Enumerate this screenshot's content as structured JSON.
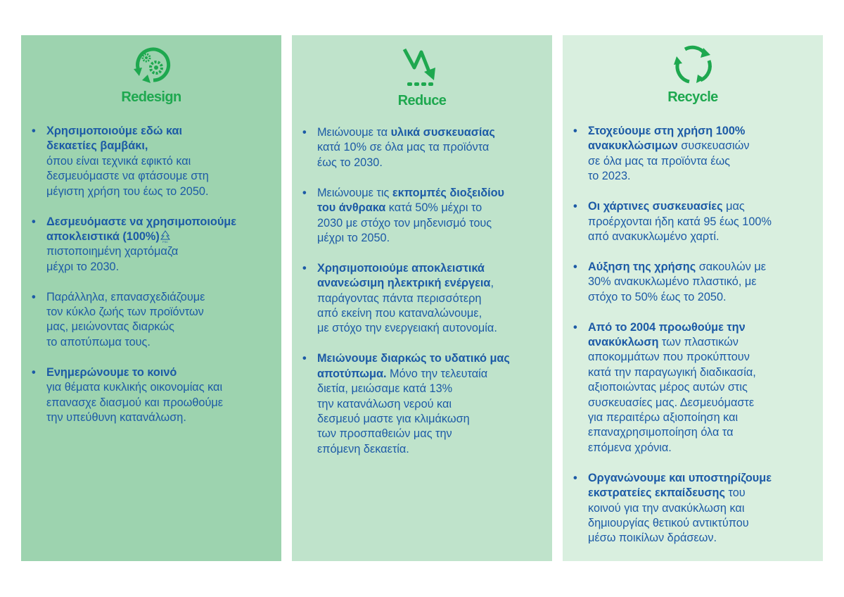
{
  "colors": {
    "text": "#1c5aa6",
    "accent_green": "#1ea84f",
    "panel_backgrounds": [
      "#9dd3af",
      "#bfe3cb",
      "#d9efdf"
    ]
  },
  "panels": [
    {
      "title": "Redesign",
      "icon": "gears-cycle-icon",
      "bullets": [
        [
          [
            {
              "t": "Χρησιμοποιούμε εδώ και",
              "b": true
            }
          ],
          [
            {
              "t": "δεκαετίες βαμβάκι,",
              "b": true
            }
          ],
          [
            {
              "t": "όπου είναι τεχνικά εφικτό και",
              "b": false
            }
          ],
          [
            {
              "t": "δεσμευόμαστε να φτάσουμε στη",
              "b": false
            }
          ],
          [
            {
              "t": "μέγιστη χρήση του έως το 2050.",
              "b": false
            }
          ]
        ],
        [
          [
            {
              "t": "Δεσμευόμαστε να χρησιμοποιούμε",
              "b": true
            }
          ],
          [
            {
              "t": "αποκλειστικά (100%)",
              "b": true
            },
            {
              "t": "FSC",
              "logo": true
            }
          ],
          [
            {
              "t": "πιστοποιημένη χαρτόμαζα",
              "b": false
            }
          ],
          [
            {
              "t": "μέχρι το 2030.",
              "b": false
            }
          ]
        ],
        [
          [
            {
              "t": "Παράλληλα, επανασχεδιάζουμε",
              "b": false
            }
          ],
          [
            {
              "t": "τον κύκλο ζωής των προϊόντων",
              "b": false
            }
          ],
          [
            {
              "t": "μας, μειώνοντας διαρκώς",
              "b": false
            }
          ],
          [
            {
              "t": "το αποτύπωμα τους.",
              "b": false
            }
          ]
        ],
        [
          [
            {
              "t": "Ενημερώνουμε το κοινό",
              "b": true
            }
          ],
          [
            {
              "t": "για θέματα κυκλικής οικονομίας και",
              "b": false
            }
          ],
          [
            {
              "t": "επανασχε διασμού και προωθούμε",
              "b": false
            }
          ],
          [
            {
              "t": "την υπεύθυνη κατανάλωση.",
              "b": false
            }
          ]
        ]
      ]
    },
    {
      "title": "Reduce",
      "icon": "downward-trend-arrow-icon",
      "bullets": [
        [
          [
            {
              "t": "Μειώνουμε τα ",
              "b": false
            },
            {
              "t": "υλικά συσκευασίας",
              "b": true
            }
          ],
          [
            {
              "t": "κατά 10% σε όλα μας τα προϊόντα",
              "b": false
            }
          ],
          [
            {
              "t": "έως το 2030.",
              "b": false
            }
          ]
        ],
        [
          [
            {
              "t": "Μειώνουμε τις ",
              "b": false
            },
            {
              "t": "εκπομπές διοξειδίου",
              "b": true
            }
          ],
          [
            {
              "t": "του άνθρακα",
              "b": true
            },
            {
              "t": " κατά 50% μέχρι το",
              "b": false
            }
          ],
          [
            {
              "t": "2030 με στόχο τον μηδενισμό τους",
              "b": false
            }
          ],
          [
            {
              "t": "μέχρι το 2050.",
              "b": false
            }
          ]
        ],
        [
          [
            {
              "t": "Χρησιμοποιούμε αποκλειστικά",
              "b": true
            }
          ],
          [
            {
              "t": "ανανεώσιμη ηλεκτρική ενέργεια",
              "b": true
            },
            {
              "t": ",",
              "b": false
            }
          ],
          [
            {
              "t": "παράγοντας πάντα περισσότερη",
              "b": false
            }
          ],
          [
            {
              "t": "από εκείνη που καταναλώνουμε,",
              "b": false
            }
          ],
          [
            {
              "t": "με στόχο την ενεργειακή αυτονομία.",
              "b": false
            }
          ]
        ],
        [
          [
            {
              "t": "Μειώνουμε διαρκώς το υδατικό μας",
              "b": true
            }
          ],
          [
            {
              "t": "αποτύπωμα.",
              "b": true
            },
            {
              "t": " Μόνο την τελευταία",
              "b": false
            }
          ],
          [
            {
              "t": "διετία, μειώσαμε κατά 13%",
              "b": false
            }
          ],
          [
            {
              "t": "την κατανάλωση νερού και",
              "b": false
            }
          ],
          [
            {
              "t": "δεσμευό μαστε για κλιμάκωση",
              "b": false
            }
          ],
          [
            {
              "t": "των προσπαθειών μας την",
              "b": false
            }
          ],
          [
            {
              "t": "επόμενη δεκαετία.",
              "b": false
            }
          ]
        ]
      ]
    },
    {
      "title": "Recycle",
      "icon": "recycle-arrows-icon",
      "bullets": [
        [
          [
            {
              "t": "Στοχεύουμε στη χρήση 100%",
              "b": true
            }
          ],
          [
            {
              "t": "ανακυκλώσιμων",
              "b": true
            },
            {
              "t": " συσκευασιών",
              "b": false
            }
          ],
          [
            {
              "t": "σε όλα μας τα προϊόντα έως",
              "b": false
            }
          ],
          [
            {
              "t": "το 2023.",
              "b": false
            }
          ]
        ],
        [
          [
            {
              "t": "Οι χάρτινες συσκευασίες",
              "b": true
            },
            {
              "t": " μας",
              "b": false
            }
          ],
          [
            {
              "t": "προέρχονται ήδη κατά 95 έως 100%",
              "b": false
            }
          ],
          [
            {
              "t": "από ανακυκλωμένο χαρτί.",
              "b": false
            }
          ]
        ],
        [
          [
            {
              "t": "Αύξηση της χρήσης",
              "b": true
            },
            {
              "t": " σακουλών με",
              "b": false
            }
          ],
          [
            {
              "t": "30% ανακυκλωμένο πλαστικό, με",
              "b": false
            }
          ],
          [
            {
              "t": "στόχο το 50% έως το 2050.",
              "b": false
            }
          ]
        ],
        [
          [
            {
              "t": "Από το 2004 προωθούμε την",
              "b": true
            }
          ],
          [
            {
              "t": "ανακύκλωση",
              "b": true
            },
            {
              "t": " των πλαστικών",
              "b": false
            }
          ],
          [
            {
              "t": "αποκομμάτων που προκύπτουν",
              "b": false
            }
          ],
          [
            {
              "t": "κατά την παραγωγική διαδικασία,",
              "b": false
            }
          ],
          [
            {
              "t": "αξιοποιώντας μέρος αυτών στις",
              "b": false
            }
          ],
          [
            {
              "t": "συσκευασίες μας. Δεσμευόμαστε",
              "b": false
            }
          ],
          [
            {
              "t": "για περαιτέρω αξιοποίηση και",
              "b": false
            }
          ],
          [
            {
              "t": "επαναχρησιμοποίηση όλα τα",
              "b": false
            }
          ],
          [
            {
              "t": "επόμενα χρόνια.",
              "b": false
            }
          ]
        ],
        [
          [
            {
              "t": "Οργανώνουμε και υποστηρίζουμε",
              "b": true
            }
          ],
          [
            {
              "t": "εκστρατείες εκπαίδευσης",
              "b": true
            },
            {
              "t": " του",
              "b": false
            }
          ],
          [
            {
              "t": "κοινού για την ανακύκλωση και",
              "b": false
            }
          ],
          [
            {
              "t": "δημιουργίας θετικού αντικτύπου",
              "b": false
            }
          ],
          [
            {
              "t": "μέσω ποικίλων δράσεων.",
              "b": false
            }
          ]
        ]
      ]
    }
  ]
}
